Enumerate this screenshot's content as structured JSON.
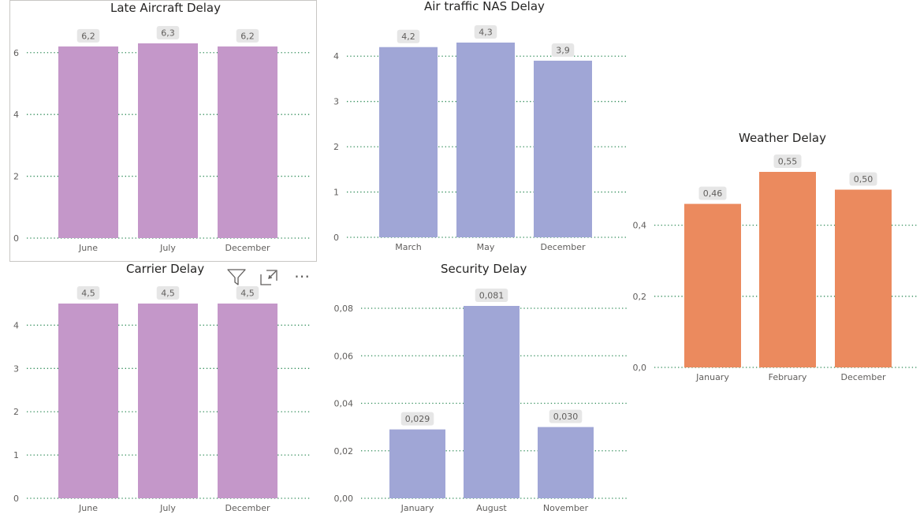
{
  "colors": {
    "purple": "#c497c9",
    "blue": "#a0a6d6",
    "orange": "#eb8a5e",
    "grid": "#2e8b57",
    "axis_text": "#605e5c",
    "label_bg": "#e6e6e6"
  },
  "visual_header": {
    "icons": [
      "filter-icon",
      "focus-mode-icon",
      "more-options-icon"
    ],
    "more_label": "⋯"
  },
  "chart_data": [
    {
      "id": "late-aircraft",
      "type": "bar",
      "title": "Late Aircraft Delay",
      "color": "purple",
      "categories": [
        "June",
        "July",
        "December"
      ],
      "values": [
        6.2,
        6.3,
        6.2
      ],
      "labels": [
        "6,2",
        "6,3",
        "6,2"
      ],
      "yticks": [
        0,
        2,
        4,
        6
      ],
      "ytick_labels": [
        "0",
        "2",
        "4",
        "6"
      ],
      "ylim": [
        0,
        6.3
      ],
      "xlabel": "",
      "ylabel": "",
      "grid": true
    },
    {
      "id": "air-traffic-nas",
      "type": "bar",
      "title": "Air traffic NAS Delay",
      "color": "blue",
      "categories": [
        "March",
        "May",
        "December"
      ],
      "values": [
        4.2,
        4.3,
        3.9
      ],
      "labels": [
        "4,2",
        "4,3",
        "3,9"
      ],
      "yticks": [
        0,
        1,
        2,
        3,
        4
      ],
      "ytick_labels": [
        "0",
        "1",
        "2",
        "3",
        "4"
      ],
      "ylim": [
        0,
        4.3
      ],
      "xlabel": "",
      "ylabel": "",
      "grid": true
    },
    {
      "id": "weather",
      "type": "bar",
      "title": "Weather Delay",
      "color": "orange",
      "categories": [
        "January",
        "February",
        "December"
      ],
      "values": [
        0.46,
        0.55,
        0.5
      ],
      "labels": [
        "0,46",
        "0,55",
        "0,50"
      ],
      "yticks": [
        0,
        0.2,
        0.4
      ],
      "ytick_labels": [
        "0,0",
        "0,2",
        "0,4"
      ],
      "ylim": [
        0,
        0.55
      ],
      "xlabel": "",
      "ylabel": "",
      "grid": true
    },
    {
      "id": "carrier",
      "type": "bar",
      "title": "Carrier Delay",
      "color": "purple",
      "categories": [
        "June",
        "July",
        "December"
      ],
      "values": [
        4.5,
        4.5,
        4.5
      ],
      "labels": [
        "4,5",
        "4,5",
        "4,5"
      ],
      "yticks": [
        0,
        1,
        2,
        3,
        4
      ],
      "ytick_labels": [
        "0",
        "1",
        "2",
        "3",
        "4"
      ],
      "ylim": [
        0,
        4.5
      ],
      "xlabel": "",
      "ylabel": "",
      "grid": true
    },
    {
      "id": "security",
      "type": "bar",
      "title": "Security Delay",
      "color": "blue",
      "categories": [
        "January",
        "August",
        "November"
      ],
      "values": [
        0.029,
        0.081,
        0.03
      ],
      "labels": [
        "0,029",
        "0,081",
        "0,030"
      ],
      "yticks": [
        0,
        0.02,
        0.04,
        0.06,
        0.08
      ],
      "ytick_labels": [
        "0,00",
        "0,02",
        "0,04",
        "0,06",
        "0,08"
      ],
      "ylim": [
        0,
        0.081
      ],
      "xlabel": "",
      "ylabel": "",
      "grid": true
    }
  ]
}
